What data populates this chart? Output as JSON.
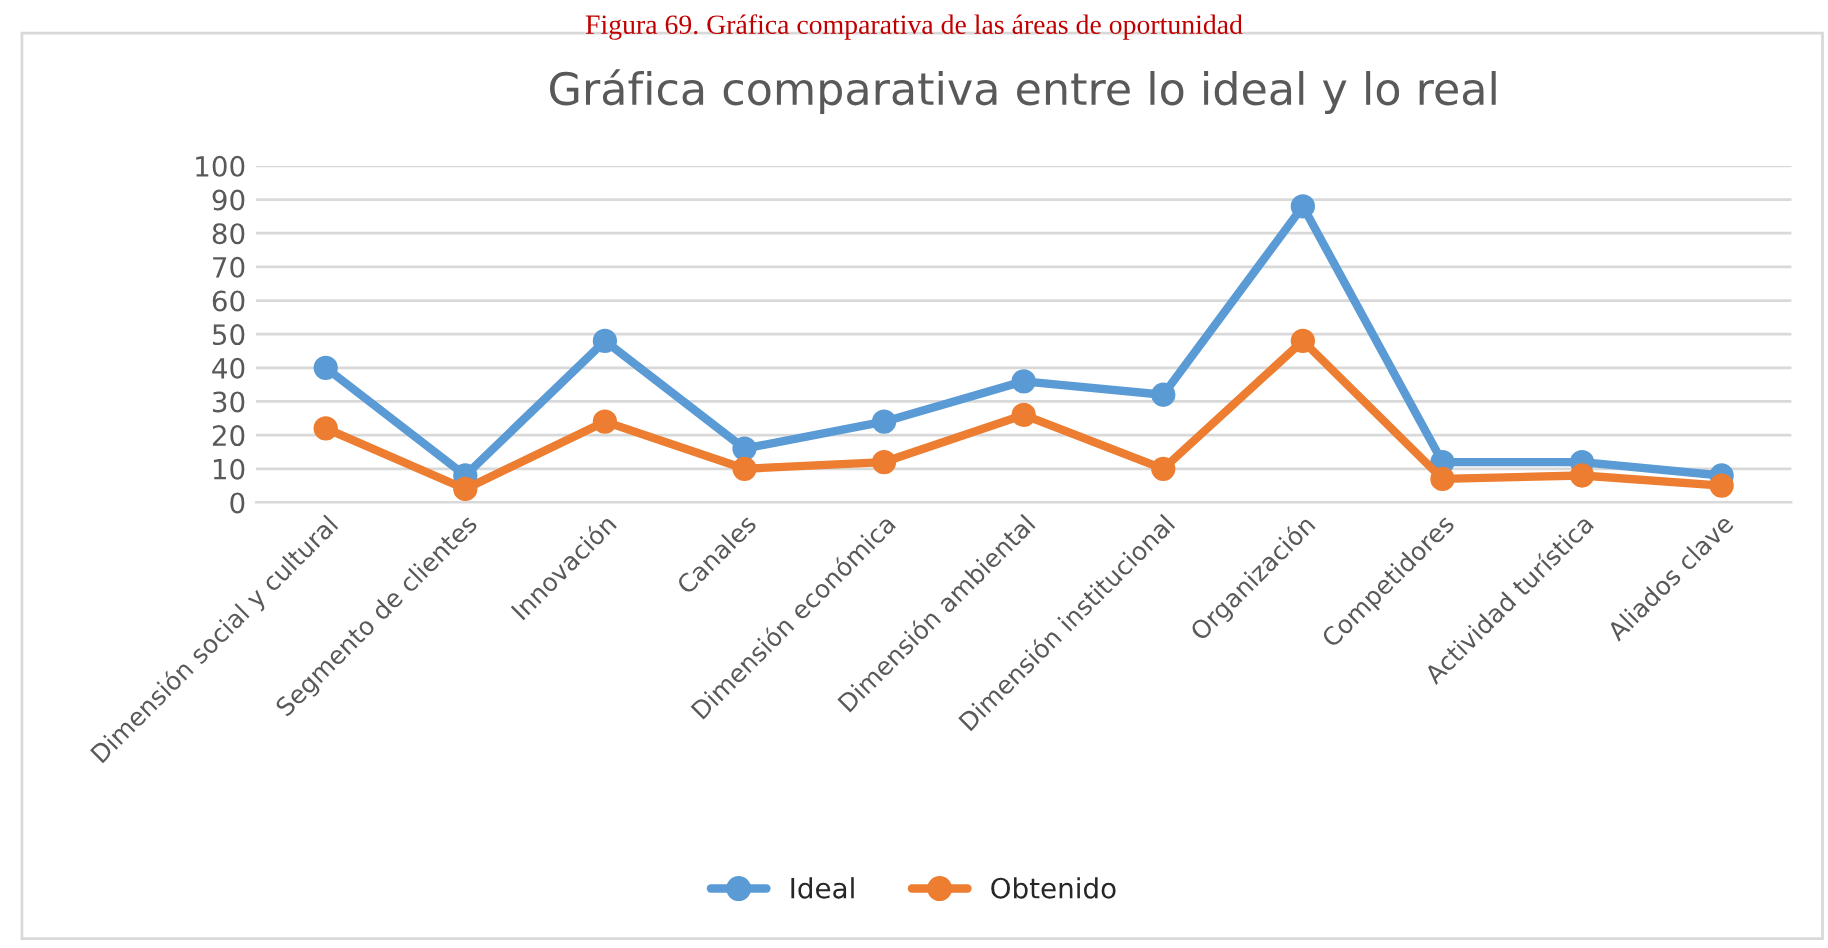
{
  "chart_data": {
    "type": "line",
    "title": "Gráfica comparativa entre lo ideal y lo real",
    "annotations": [
      "Figura 69. Gráfica comparativa de las áreas de oportunidad"
    ],
    "categories": [
      "Dimensión social y cultural",
      "Segmento de clientes",
      "Innovación",
      "Canales",
      "Dimensión económica",
      "Dimensión ambiental",
      "Dimensión institucional",
      "Organización",
      "Competidores",
      "Actividad turística",
      "Aliados clave"
    ],
    "series": [
      {
        "name": "Ideal",
        "color": "#5b9bd5",
        "values": [
          40,
          8,
          48,
          16,
          24,
          36,
          32,
          88,
          12,
          12,
          8
        ]
      },
      {
        "name": "Obtenido",
        "color": "#ed7d31",
        "values": [
          22,
          4,
          24,
          10,
          12,
          26,
          10,
          48,
          7,
          8,
          5
        ]
      }
    ],
    "ylim": [
      0,
      100
    ],
    "yticks": [
      0,
      10,
      20,
      30,
      40,
      50,
      60,
      70,
      80,
      90,
      100
    ],
    "grid": "y",
    "legend": "bottom",
    "marker": "circle",
    "line_style": "solid"
  }
}
